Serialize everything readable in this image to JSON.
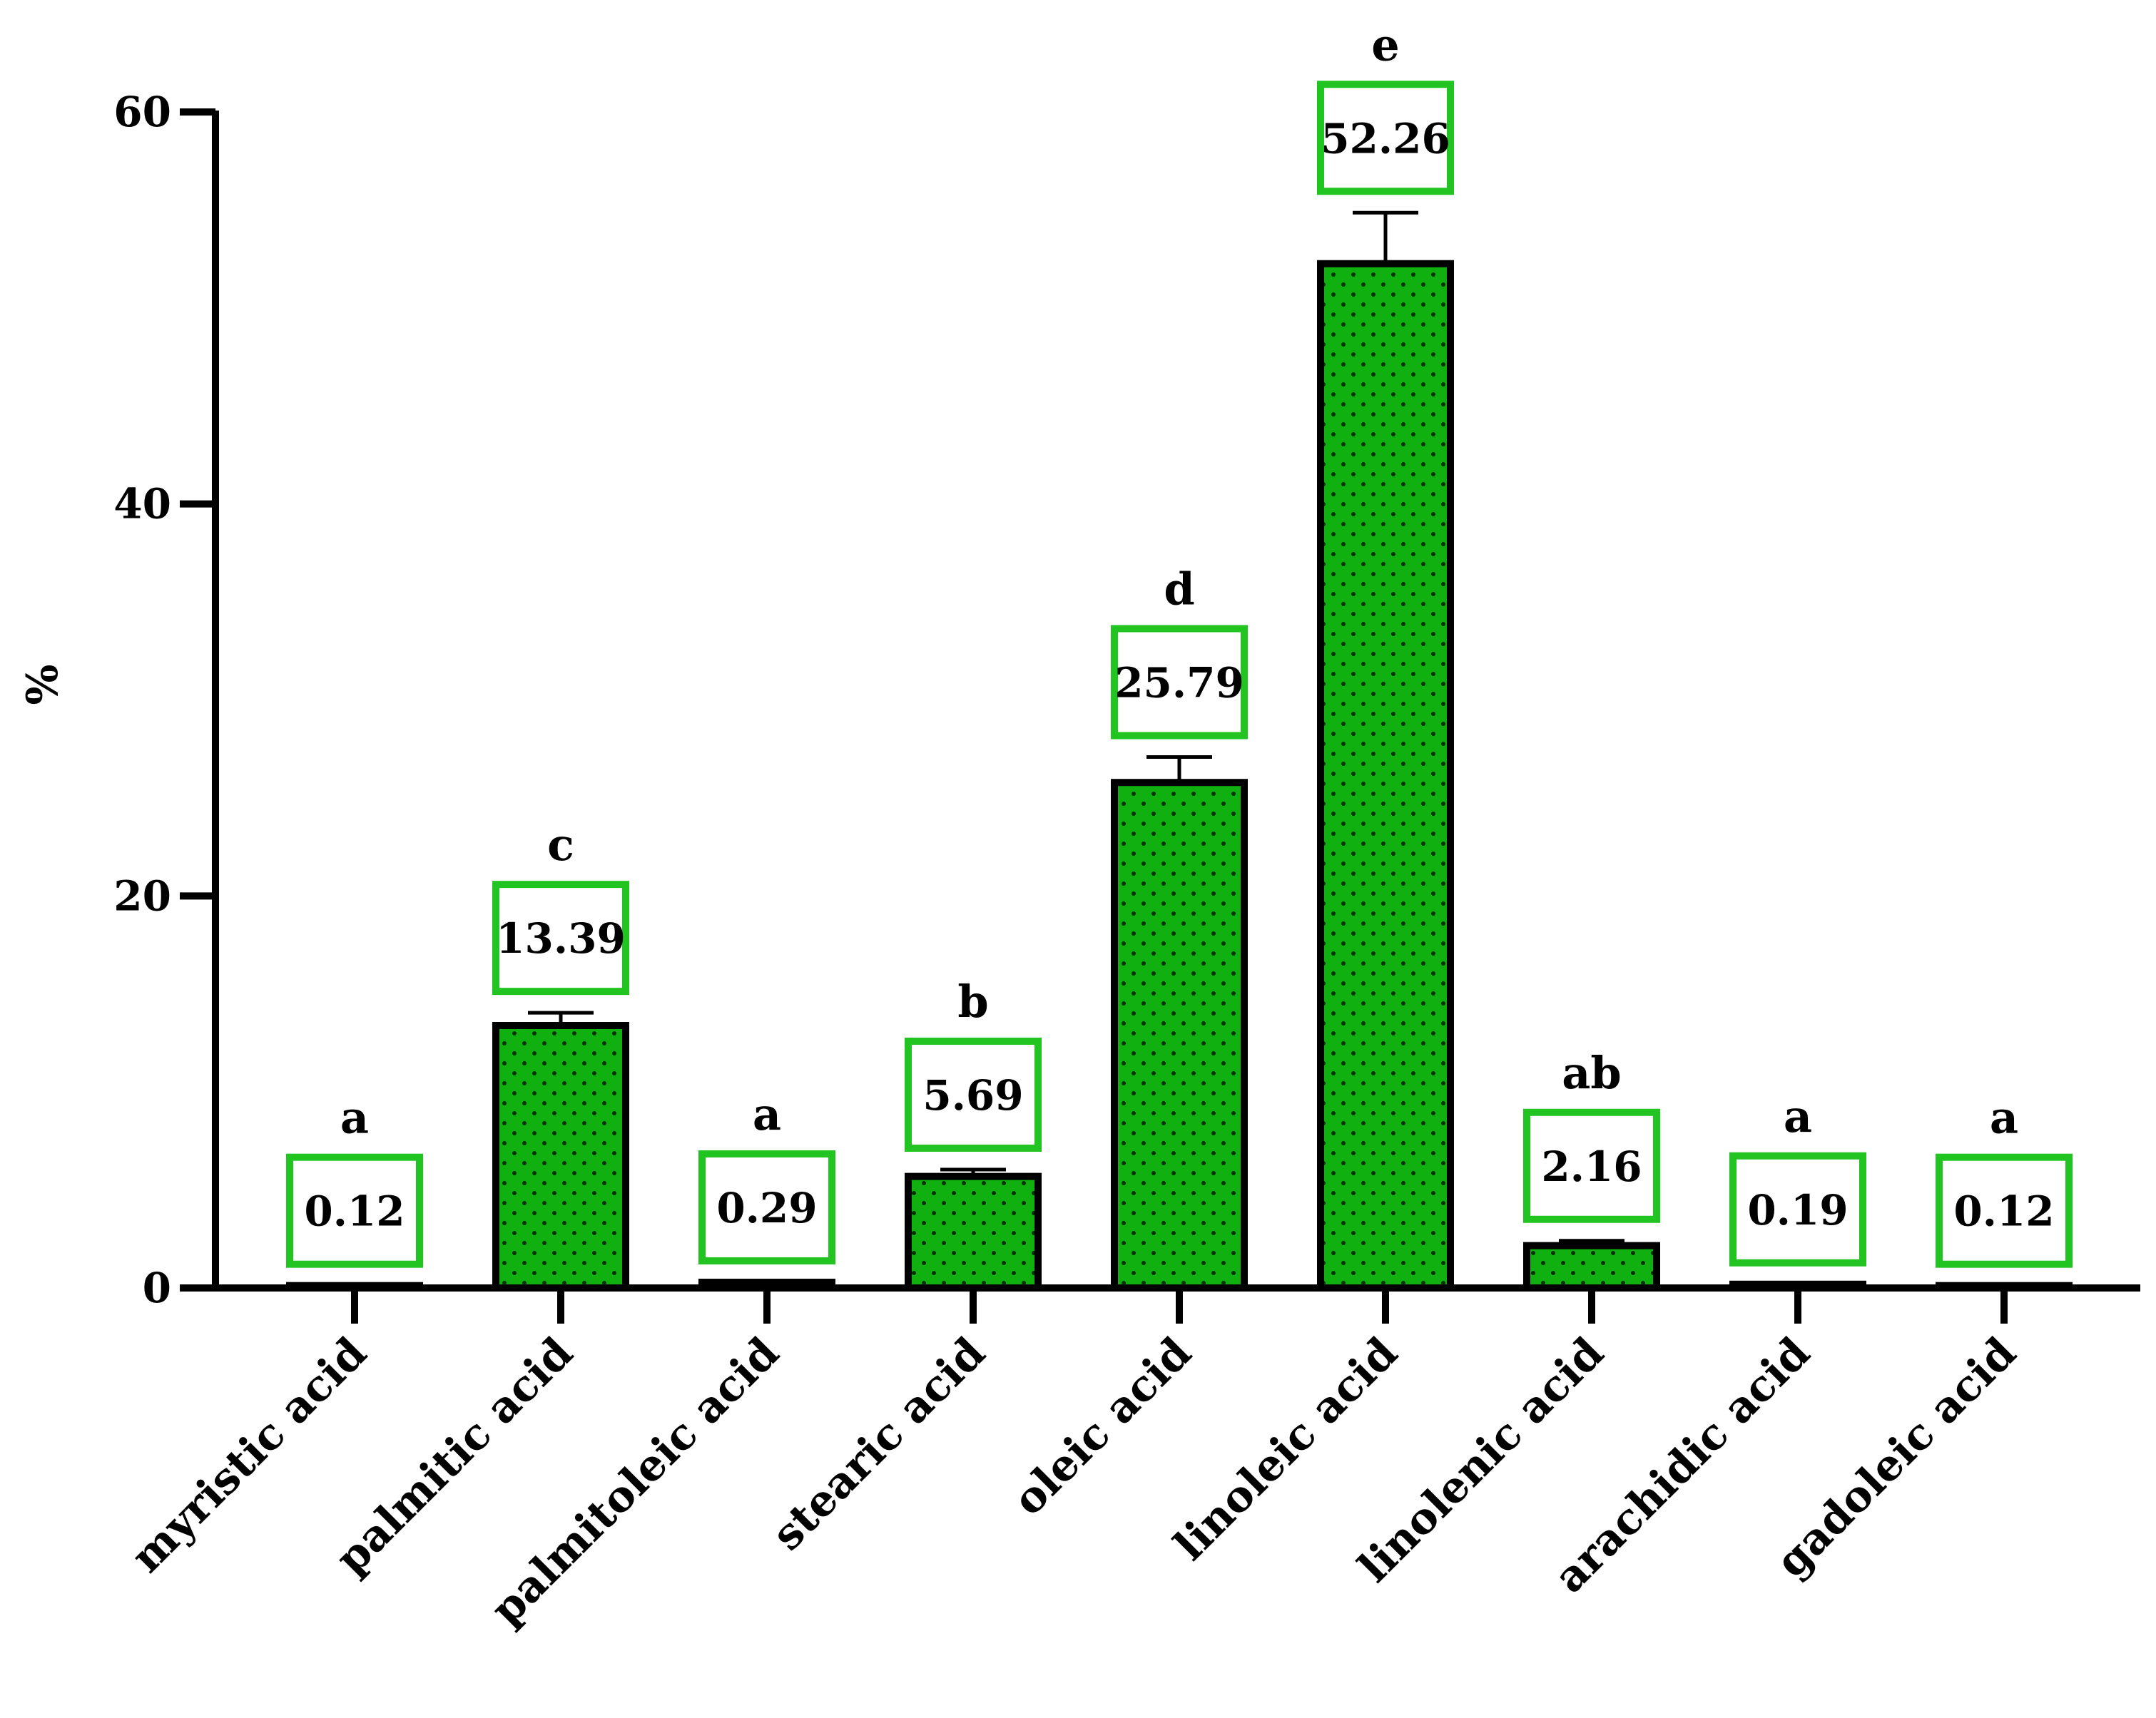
{
  "chart_data": {
    "type": "bar",
    "ylabel": "%",
    "xlabel": "",
    "title": "",
    "ylim": [
      0,
      60
    ],
    "yticks": [
      0,
      20,
      40,
      60
    ],
    "categories": [
      "myristic acid",
      "palmitic acid",
      "palmitoleic acid",
      "stearic acid",
      "oleic acid",
      "linoleic acid",
      "linolenic acid",
      "arachidic acid",
      "gadoleic acid"
    ],
    "values": [
      0.12,
      13.39,
      0.29,
      5.69,
      25.79,
      52.26,
      2.16,
      0.19,
      0.12
    ],
    "value_labels": [
      "0.12",
      "13.39",
      "0.29",
      "5.69",
      "25.79",
      "52.26",
      "2.16",
      "0.19",
      "0.12"
    ],
    "error": [
      0.0,
      0.65,
      0.0,
      0.35,
      1.3,
      2.6,
      0.25,
      0.0,
      0.0
    ],
    "significance": [
      "a",
      "c",
      "a",
      "b",
      "d",
      "e",
      "ab",
      "a",
      "a"
    ],
    "colors": {
      "bar_fill": "#0fb00f",
      "bar_stroke": "#000000",
      "dots": "#003300",
      "label_box": "#22c422"
    },
    "grid": false
  }
}
